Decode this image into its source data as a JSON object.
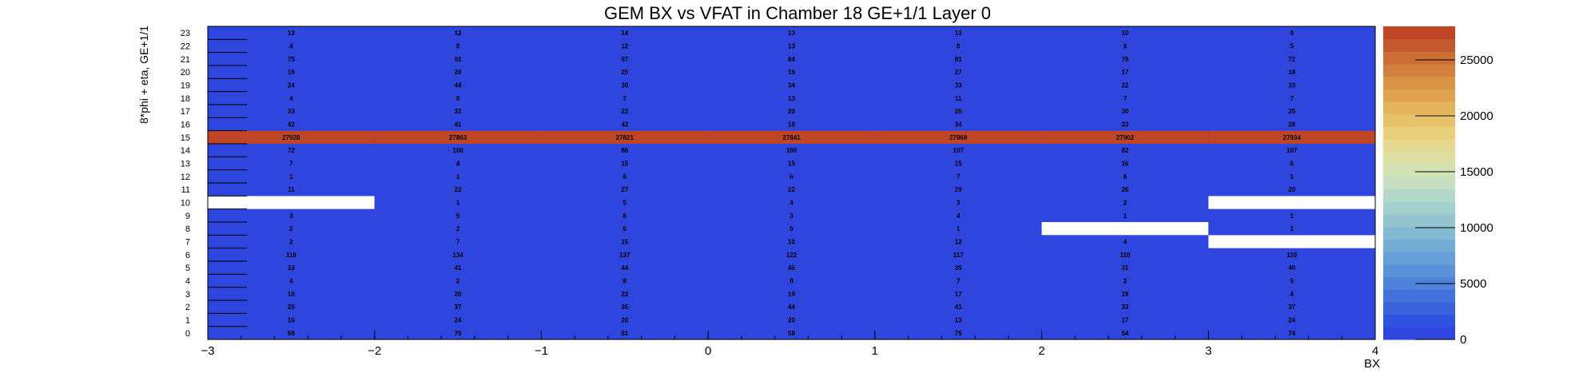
{
  "chart_data": {
    "type": "heatmap",
    "title": "GEM BX vs VFAT in Chamber 18 GE+1/1 Layer 0",
    "xlabel": "BX",
    "ylabel": "8*phi + eta, GE+1/1",
    "xlim": [
      -3,
      4
    ],
    "ylim": [
      0,
      24
    ],
    "x_ticks": [
      "−3",
      "−2",
      "−1",
      "0",
      "1",
      "2",
      "3",
      "4"
    ],
    "x_bins": [
      -2.5,
      -1.5,
      -0.5,
      0.5,
      1.5,
      2.5,
      3.5
    ],
    "y_ticks": [
      "0",
      "1",
      "2",
      "3",
      "4",
      "5",
      "6",
      "7",
      "8",
      "9",
      "10",
      "11",
      "12",
      "13",
      "14",
      "15",
      "16",
      "17",
      "18",
      "19",
      "20",
      "21",
      "22",
      "23"
    ],
    "colorbar": {
      "min": 0,
      "max": 28000,
      "ticks": [
        "0",
        "5000",
        "10000",
        "15000",
        "20000",
        "25000"
      ],
      "tick_values": [
        0,
        5000,
        10000,
        15000,
        20000,
        25000
      ]
    },
    "background_color": "#2e45de",
    "values": [
      [
        68,
        70,
        81,
        58,
        75,
        54,
        74
      ],
      [
        16,
        24,
        20,
        20,
        13,
        17,
        24
      ],
      [
        25,
        37,
        35,
        44,
        41,
        33,
        37
      ],
      [
        16,
        20,
        23,
        19,
        17,
        19,
        4
      ],
      [
        4,
        2,
        8,
        8,
        7,
        2,
        5
      ],
      [
        33,
        41,
        44,
        45,
        35,
        31,
        40
      ],
      [
        118,
        134,
        137,
        122,
        117,
        110,
        110
      ],
      [
        2,
        7,
        15,
        10,
        12,
        4,
        null
      ],
      [
        2,
        2,
        6,
        6,
        1,
        null,
        1
      ],
      [
        3,
        5,
        8,
        3,
        4,
        1,
        1
      ],
      [
        null,
        1,
        5,
        4,
        3,
        2,
        null
      ],
      [
        11,
        22,
        27,
        22,
        29,
        26,
        20
      ],
      [
        1,
        1,
        6,
        6,
        7,
        6,
        1
      ],
      [
        7,
        4,
        15,
        15,
        15,
        16,
        6
      ],
      [
        72,
        106,
        86,
        100,
        107,
        82,
        107
      ],
      [
        27928,
        27863,
        27821,
        27841,
        27869,
        27902,
        27934
      ],
      [
        42,
        41,
        42,
        18,
        34,
        23,
        28
      ],
      [
        33,
        32,
        22,
        20,
        26,
        30,
        25
      ],
      [
        4,
        9,
        7,
        13,
        11,
        7,
        7
      ],
      [
        24,
        44,
        30,
        34,
        33,
        22,
        33
      ],
      [
        16,
        20,
        25,
        16,
        27,
        17,
        18
      ],
      [
        75,
        92,
        97,
        84,
        81,
        79,
        72
      ],
      [
        4,
        8,
        12,
        13,
        8,
        6,
        5
      ],
      [
        13,
        12,
        14,
        13,
        13,
        10,
        9
      ]
    ]
  }
}
